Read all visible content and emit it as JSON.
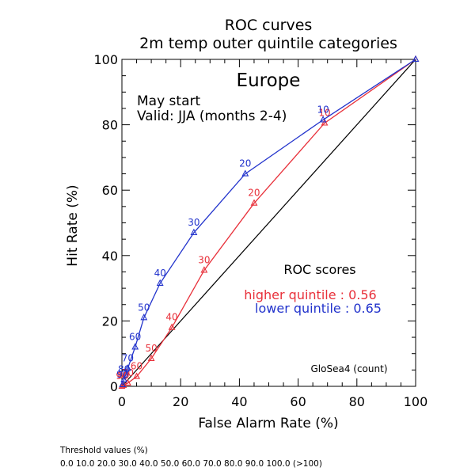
{
  "chart_data": {
    "type": "line",
    "title": "ROC curves",
    "subtitle": "2m temp outer quintile categories",
    "region": "Europe",
    "start_text": "May start",
    "valid_text": "Valid: JJA (months 2-4)",
    "xlabel": "False Alarm Rate (%)",
    "ylabel": "Hit Rate (%)",
    "xlim": [
      0,
      100
    ],
    "ylim": [
      0,
      100
    ],
    "x_ticks": [
      "0",
      "20",
      "40",
      "60",
      "80",
      "100"
    ],
    "y_ticks": [
      "0",
      "20",
      "40",
      "60",
      "80",
      "100"
    ],
    "grid": false,
    "scores_title": "ROC scores",
    "model_label": "GloSea4 (count)",
    "series": [
      {
        "name": "higher quintile",
        "score_label": "higher quintile : 0.56",
        "color": "#e8303a",
        "points": [
          {
            "x": 100,
            "y": 100,
            "label": ""
          },
          {
            "x": 69,
            "y": 80.5,
            "label": "10"
          },
          {
            "x": 45,
            "y": 56,
            "label": "20"
          },
          {
            "x": 28,
            "y": 35.5,
            "label": "30"
          },
          {
            "x": 17,
            "y": 18,
            "label": "40"
          },
          {
            "x": 10,
            "y": 8.5,
            "label": "50"
          },
          {
            "x": 5,
            "y": 3,
            "label": "60"
          },
          {
            "x": 2,
            "y": 1,
            "label": "70"
          },
          {
            "x": 0.5,
            "y": 0.3,
            "label": "80"
          },
          {
            "x": 0,
            "y": 0,
            "label": "90"
          }
        ]
      },
      {
        "name": "lower quintile",
        "score_label": "lower quintile : 0.65",
        "color": "#2233cc",
        "points": [
          {
            "x": 100,
            "y": 100,
            "label": ""
          },
          {
            "x": 68.5,
            "y": 81.5,
            "label": "10"
          },
          {
            "x": 42,
            "y": 65,
            "label": "20"
          },
          {
            "x": 24.5,
            "y": 47,
            "label": "30"
          },
          {
            "x": 13,
            "y": 31.5,
            "label": "40"
          },
          {
            "x": 7.5,
            "y": 21,
            "label": "50"
          },
          {
            "x": 4.5,
            "y": 12,
            "label": "60"
          },
          {
            "x": 2,
            "y": 5.5,
            "label": "70"
          },
          {
            "x": 0.7,
            "y": 2,
            "label": "80"
          },
          {
            "x": 0.2,
            "y": 0.5,
            "label": "90"
          }
        ]
      }
    ],
    "reference_line": {
      "from": [
        0,
        0
      ],
      "to": [
        100,
        100
      ],
      "color": "#000000"
    }
  },
  "thresholds": {
    "title": "Threshold values (%)",
    "values": "0.0 10.0 20.0 30.0 40.0 50.0 60.0 70.0 80.0 90.0 100.0 (>100)"
  }
}
